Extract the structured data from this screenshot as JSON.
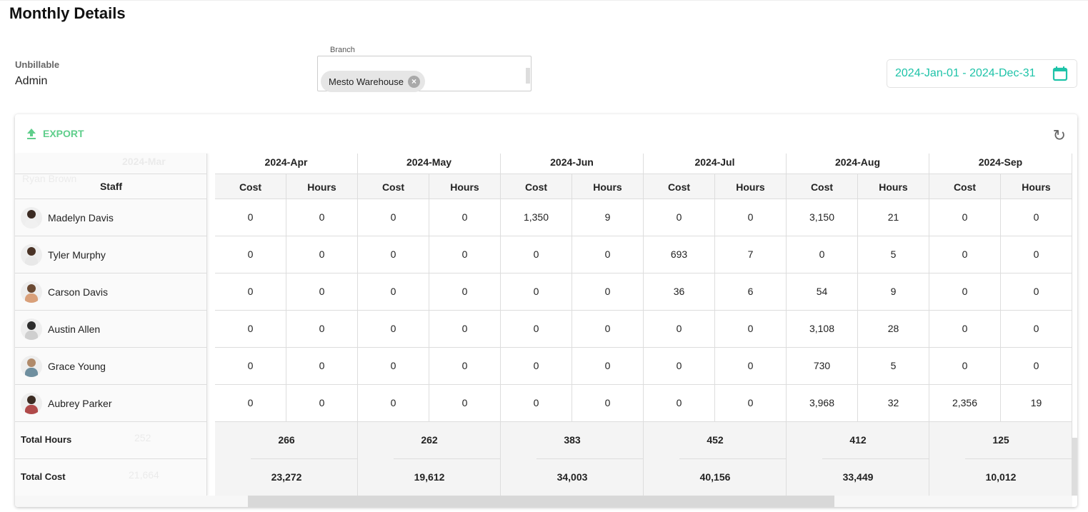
{
  "page": {
    "title": "Monthly Details"
  },
  "filters": {
    "unbillable_label": "Unbillable",
    "unbillable_value": "Admin",
    "branch_label": "Branch",
    "branch_chip": "Mesto Warehouse",
    "date_range": "2024-Jan-01 - 2024-Dec-31"
  },
  "toolbar": {
    "export_label": "EXPORT"
  },
  "table": {
    "staff_header": "Staff",
    "cost_label": "Cost",
    "hours_label": "Hours",
    "ghost": {
      "month": "2024-Mar",
      "staff": "Ryan Brown",
      "total_hours": "252",
      "total_cost": "21,664"
    },
    "months": [
      "2024-Apr",
      "2024-May",
      "2024-Jun",
      "2024-Jul",
      "2024-Aug",
      "2024-Sep"
    ],
    "rows": [
      {
        "name": "Madelyn Davis",
        "values": [
          [
            "0",
            "0"
          ],
          [
            "0",
            "0"
          ],
          [
            "1,350",
            "9"
          ],
          [
            "0",
            "0"
          ],
          [
            "3,150",
            "21"
          ],
          [
            "0",
            "0"
          ]
        ]
      },
      {
        "name": "Tyler Murphy",
        "values": [
          [
            "0",
            "0"
          ],
          [
            "0",
            "0"
          ],
          [
            "0",
            "0"
          ],
          [
            "693",
            "7"
          ],
          [
            "0",
            "5"
          ],
          [
            "0",
            "0"
          ]
        ]
      },
      {
        "name": "Carson Davis",
        "values": [
          [
            "0",
            "0"
          ],
          [
            "0",
            "0"
          ],
          [
            "0",
            "0"
          ],
          [
            "36",
            "6"
          ],
          [
            "54",
            "9"
          ],
          [
            "0",
            "0"
          ]
        ]
      },
      {
        "name": "Austin Allen",
        "values": [
          [
            "0",
            "0"
          ],
          [
            "0",
            "0"
          ],
          [
            "0",
            "0"
          ],
          [
            "0",
            "0"
          ],
          [
            "3,108",
            "28"
          ],
          [
            "0",
            "0"
          ]
        ]
      },
      {
        "name": "Grace Young",
        "values": [
          [
            "0",
            "0"
          ],
          [
            "0",
            "0"
          ],
          [
            "0",
            "0"
          ],
          [
            "0",
            "0"
          ],
          [
            "730",
            "5"
          ],
          [
            "0",
            "0"
          ]
        ]
      },
      {
        "name": "Aubrey Parker",
        "values": [
          [
            "0",
            "0"
          ],
          [
            "0",
            "0"
          ],
          [
            "0",
            "0"
          ],
          [
            "0",
            "0"
          ],
          [
            "3,968",
            "32"
          ],
          [
            "2,356",
            "19"
          ]
        ]
      }
    ],
    "total_hours_label": "Total Hours",
    "total_cost_label": "Total Cost",
    "total_hours": [
      "266",
      "262",
      "383",
      "452",
      "412",
      "125"
    ],
    "total_cost": [
      "23,272",
      "19,612",
      "34,003",
      "40,156",
      "33,449",
      "10,012"
    ]
  },
  "colors": {
    "accent": "#1ec3a8",
    "export": "#5fce8b"
  }
}
